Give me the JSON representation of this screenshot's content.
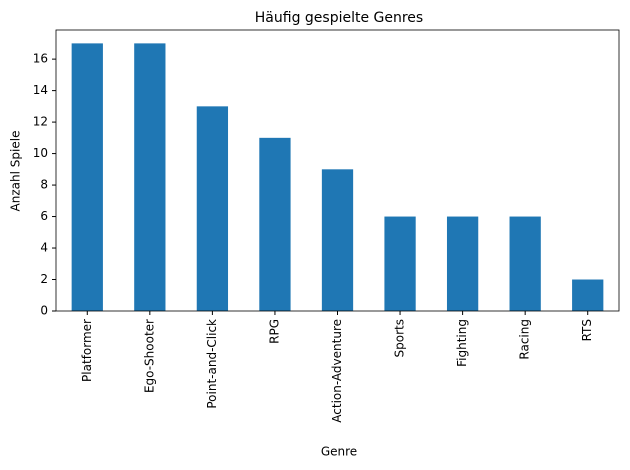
{
  "chart_data": {
    "type": "bar",
    "title": "Häufig gespielte Genres",
    "x_label": "Genre",
    "y_label": "Anzahl Spiele",
    "categories": [
      "Platformer",
      "Ego-Shooter",
      "Point-and-Click",
      "RPG",
      "Action-Adventure",
      "Sports",
      "Fighting",
      "Racing",
      "RTS"
    ],
    "values": [
      17,
      17,
      13,
      11,
      9,
      6,
      6,
      6,
      2
    ],
    "color": "#1f77b4",
    "ylim": [
      0,
      17.85
    ],
    "yticks": [
      0,
      2,
      4,
      6,
      8,
      10,
      12,
      14,
      16
    ],
    "grid": false
  }
}
